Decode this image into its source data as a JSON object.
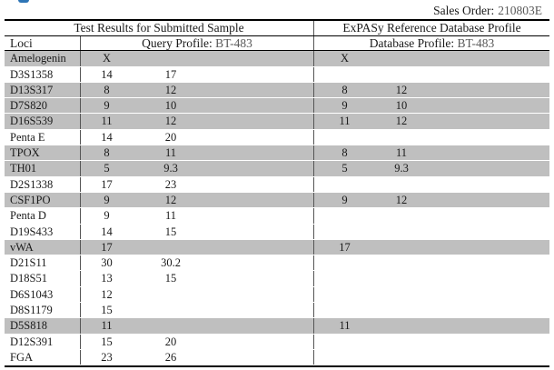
{
  "page": {
    "sales_order_label": "Sales Order:",
    "sales_order_value": "210803E"
  },
  "colors": {
    "highlight_row": "#bfbfbf",
    "muted_text": "#595959",
    "logo_accent": "#2e75b6",
    "border": "#000000"
  },
  "table": {
    "group_headers": {
      "left": "Test Results for Submitted Sample",
      "right": "ExPASy Reference Database Profile"
    },
    "sub_headers": {
      "loci": "Loci",
      "query_label": "Query Profile:",
      "query_value": "BT-483",
      "database_label": "Database Profile:",
      "database_value": "BT-483"
    },
    "rows": [
      {
        "locus": "Amelogenin",
        "query": [
          "X",
          ""
        ],
        "database": [
          "X",
          ""
        ],
        "match": true
      },
      {
        "locus": "D3S1358",
        "query": [
          "14",
          "17"
        ],
        "database": [
          "",
          ""
        ],
        "match": false
      },
      {
        "locus": "D13S317",
        "query": [
          "8",
          "12"
        ],
        "database": [
          "8",
          "12"
        ],
        "match": true
      },
      {
        "locus": "D7S820",
        "query": [
          "9",
          "10"
        ],
        "database": [
          "9",
          "10"
        ],
        "match": true
      },
      {
        "locus": "D16S539",
        "query": [
          "11",
          "12"
        ],
        "database": [
          "11",
          "12"
        ],
        "match": true
      },
      {
        "locus": "Penta E",
        "query": [
          "14",
          "20"
        ],
        "database": [
          "",
          ""
        ],
        "match": false
      },
      {
        "locus": "TPOX",
        "query": [
          "8",
          "11"
        ],
        "database": [
          "8",
          "11"
        ],
        "match": true
      },
      {
        "locus": "TH01",
        "query": [
          "5",
          "9.3"
        ],
        "database": [
          "5",
          "9.3"
        ],
        "match": true
      },
      {
        "locus": "D2S1338",
        "query": [
          "17",
          "23"
        ],
        "database": [
          "",
          ""
        ],
        "match": false
      },
      {
        "locus": "CSF1PO",
        "query": [
          "9",
          "12"
        ],
        "database": [
          "9",
          "12"
        ],
        "match": true
      },
      {
        "locus": "Penta D",
        "query": [
          "9",
          "11"
        ],
        "database": [
          "",
          ""
        ],
        "match": false
      },
      {
        "locus": "D19S433",
        "query": [
          "14",
          "15"
        ],
        "database": [
          "",
          ""
        ],
        "match": false
      },
      {
        "locus": "vWA",
        "query": [
          "17",
          ""
        ],
        "database": [
          "17",
          ""
        ],
        "match": true
      },
      {
        "locus": "D21S11",
        "query": [
          "30",
          "30.2"
        ],
        "database": [
          "",
          ""
        ],
        "match": false
      },
      {
        "locus": "D18S51",
        "query": [
          "13",
          "15"
        ],
        "database": [
          "",
          ""
        ],
        "match": false
      },
      {
        "locus": "D6S1043",
        "query": [
          "12",
          ""
        ],
        "database": [
          "",
          ""
        ],
        "match": false
      },
      {
        "locus": "D8S1179",
        "query": [
          "15",
          ""
        ],
        "database": [
          "",
          ""
        ],
        "match": false
      },
      {
        "locus": "D5S818",
        "query": [
          "11",
          ""
        ],
        "database": [
          "11",
          ""
        ],
        "match": true
      },
      {
        "locus": "D12S391",
        "query": [
          "15",
          "20"
        ],
        "database": [
          "",
          ""
        ],
        "match": false
      },
      {
        "locus": "FGA",
        "query": [
          "23",
          "26"
        ],
        "database": [
          "",
          ""
        ],
        "match": false
      }
    ]
  }
}
